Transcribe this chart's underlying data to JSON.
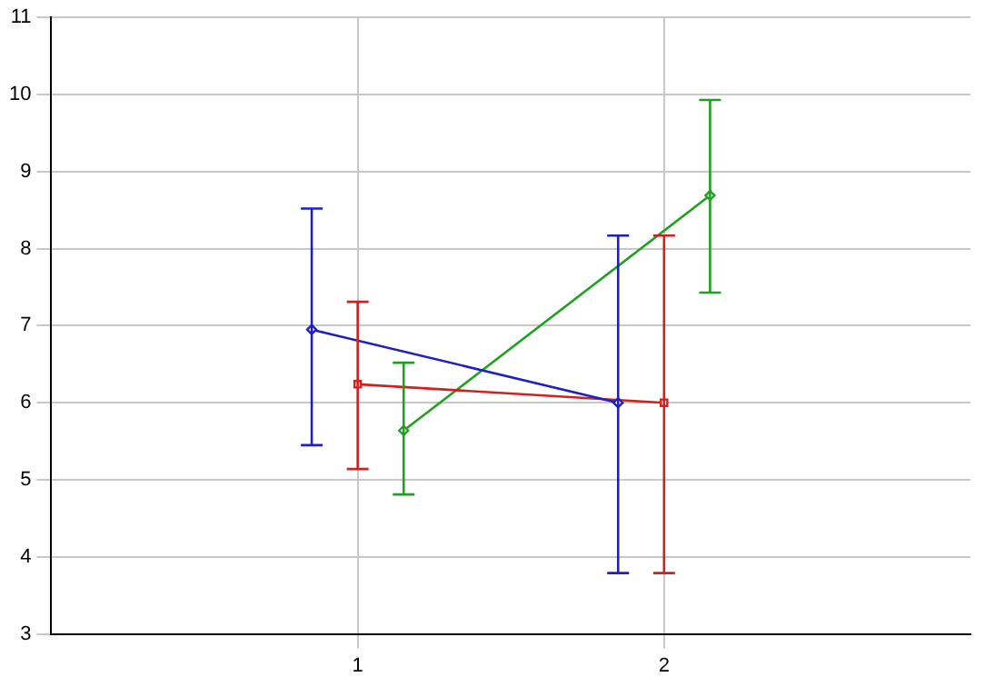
{
  "chart_data": {
    "type": "line",
    "xlim": [
      0,
      3
    ],
    "xticks": [
      1,
      2
    ],
    "ylim": [
      3,
      11
    ],
    "yticks": [
      3,
      4,
      5,
      6,
      7,
      8,
      9,
      10,
      11
    ],
    "grid": true,
    "legend": false,
    "series": [
      {
        "color": "#2020c0",
        "marker": "diamond",
        "x": [
          0.85,
          1.85
        ],
        "values": [
          6.95,
          6.0
        ],
        "errors": [
          [
            5.45,
            8.52
          ],
          [
            3.79,
            8.17
          ]
        ]
      },
      {
        "color": "#d02020",
        "marker": "square",
        "x": [
          1.0,
          2.0
        ],
        "values": [
          6.24,
          6.0
        ],
        "errors": [
          [
            5.14,
            7.31
          ],
          [
            3.79,
            8.17
          ]
        ]
      },
      {
        "color": "#20a020",
        "marker": "diamond",
        "x": [
          1.15,
          2.15
        ],
        "values": [
          5.64,
          8.69
        ],
        "errors": [
          [
            4.81,
            6.52
          ],
          [
            7.43,
            9.93
          ]
        ]
      }
    ]
  }
}
